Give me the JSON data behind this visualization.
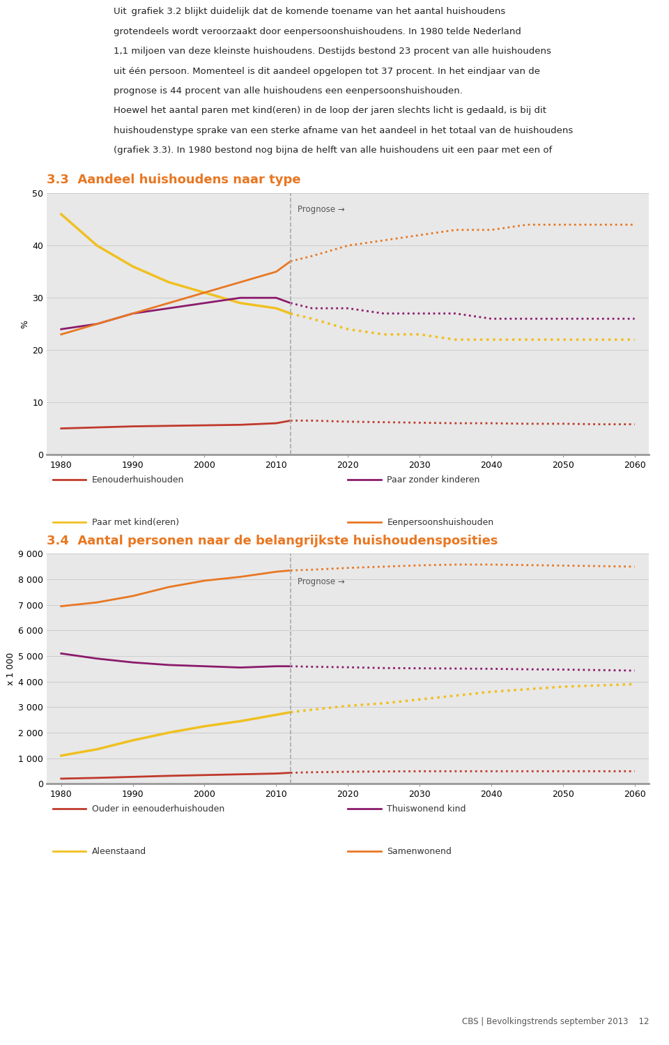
{
  "bg_color": "#e8e8e8",
  "page_bg": "#ffffff",
  "orange_color": "#e87722",
  "red_color": "#c0392b",
  "purple_color": "#8b1a6b",
  "yellow_color": "#f0c020",
  "title1": "3.3  Aandeel huishoudens naar type",
  "ylabel1": "%",
  "ylim1": [
    0,
    50
  ],
  "yticks1": [
    0,
    10,
    20,
    30,
    40,
    50
  ],
  "title2": "3.4  Aantal personen naar de belangrijkste huishoudensposities",
  "ylabel2": "x 1 000",
  "ylim2": [
    0,
    9000
  ],
  "yticks2": [
    0,
    1000,
    2000,
    3000,
    4000,
    5000,
    6000,
    7000,
    8000,
    9000
  ],
  "years_hist": [
    1980,
    1985,
    1990,
    1995,
    2000,
    2005,
    2010,
    2012
  ],
  "years_prog": [
    2012,
    2015,
    2020,
    2025,
    2030,
    2035,
    2040,
    2045,
    2050,
    2055,
    2060
  ],
  "prognose_year": 2012,
  "xticks": [
    1980,
    1990,
    2000,
    2010,
    2020,
    2030,
    2040,
    2050,
    2060
  ],
  "chart1": {
    "eenouder_hist": [
      5.0,
      5.2,
      5.4,
      5.5,
      5.6,
      5.7,
      6.0,
      6.5
    ],
    "eenouder_prog": [
      6.5,
      6.5,
      6.3,
      6.2,
      6.1,
      6.0,
      6.0,
      5.9,
      5.9,
      5.8,
      5.8
    ],
    "paarmet_hist": [
      46,
      40,
      36,
      33,
      31,
      29,
      28,
      27
    ],
    "paarmet_prog": [
      27,
      26,
      24,
      23,
      23,
      22,
      22,
      22,
      22,
      22,
      22
    ],
    "paarzonder_hist": [
      24,
      25,
      27,
      28,
      29,
      30,
      30,
      29
    ],
    "paarzonder_prog": [
      29,
      28,
      28,
      27,
      27,
      27,
      26,
      26,
      26,
      26,
      26
    ],
    "eenpersoons_hist": [
      23,
      25,
      27,
      29,
      31,
      33,
      35,
      37
    ],
    "eenpersoons_prog": [
      37,
      38,
      40,
      41,
      42,
      43,
      43,
      44,
      44,
      44,
      44
    ]
  },
  "chart2": {
    "ouder_hist": [
      200,
      230,
      270,
      310,
      340,
      370,
      400,
      430
    ],
    "ouder_prog": [
      430,
      450,
      470,
      480,
      490,
      490,
      490,
      490,
      490,
      490,
      490
    ],
    "aleenstaand_hist": [
      1100,
      1350,
      1700,
      2000,
      2250,
      2450,
      2700,
      2800
    ],
    "aleenstaand_prog": [
      2800,
      2900,
      3050,
      3150,
      3300,
      3450,
      3600,
      3700,
      3800,
      3850,
      3900
    ],
    "thuiswonend_hist": [
      5100,
      4900,
      4750,
      4650,
      4600,
      4550,
      4600,
      4600
    ],
    "thuiswonend_prog": [
      4600,
      4580,
      4560,
      4530,
      4520,
      4510,
      4500,
      4480,
      4470,
      4450,
      4430
    ],
    "samenwonend_hist": [
      6950,
      7100,
      7350,
      7700,
      7950,
      8100,
      8300,
      8350
    ],
    "samenwonend_prog": [
      8350,
      8380,
      8450,
      8500,
      8550,
      8580,
      8580,
      8560,
      8540,
      8520,
      8500
    ]
  },
  "legend1": {
    "eenouder": "Eenouderhuishouden",
    "paarmet": "Paar met kind(eren)",
    "paarzonder": "Paar zonder kinderen",
    "eenpersoons": "Eenpersoonshuishouden"
  },
  "legend2": {
    "ouder": "Ouder in eenouderhuishouden",
    "aleenstaand": "Aleenstaand",
    "thuiswonend": "Thuiswonend kind",
    "samenwonend": "Samenwonend"
  },
  "prognose_label": "Prognose →",
  "footer": "CBS | Bevolkingstrends september 2013    12",
  "text_block_lines": [
    "Uit  grafiek 3.2 blijkt duidelijk dat de komende toename van het aantal huishoudens",
    "grotendeels wordt veroorzaakt door eenpersoonshuishoudens. In 1980 telde Nederland",
    "1,1 miljoen van deze kleinste huishoudens. Destijds bestond 23 procent van alle huishoudens",
    "uit één persoon. Momenteel is dit aandeel opgelopen tot 37 procent. In het eindjaar van de",
    "prognose is 44 procent van alle huishoudens een eenpersoonshuishouden.",
    "Hoewel het aantal paren met kind(eren) in de loop der jaren slechts licht is gedaald, is bij dit",
    "huishoudenstype sprake van een sterke afname van het aandeel in het totaal van de huishoudens",
    "(grafiek 3.3). In 1980 bestond nog bijna de helft van alle huishoudens uit een paar met een of"
  ]
}
